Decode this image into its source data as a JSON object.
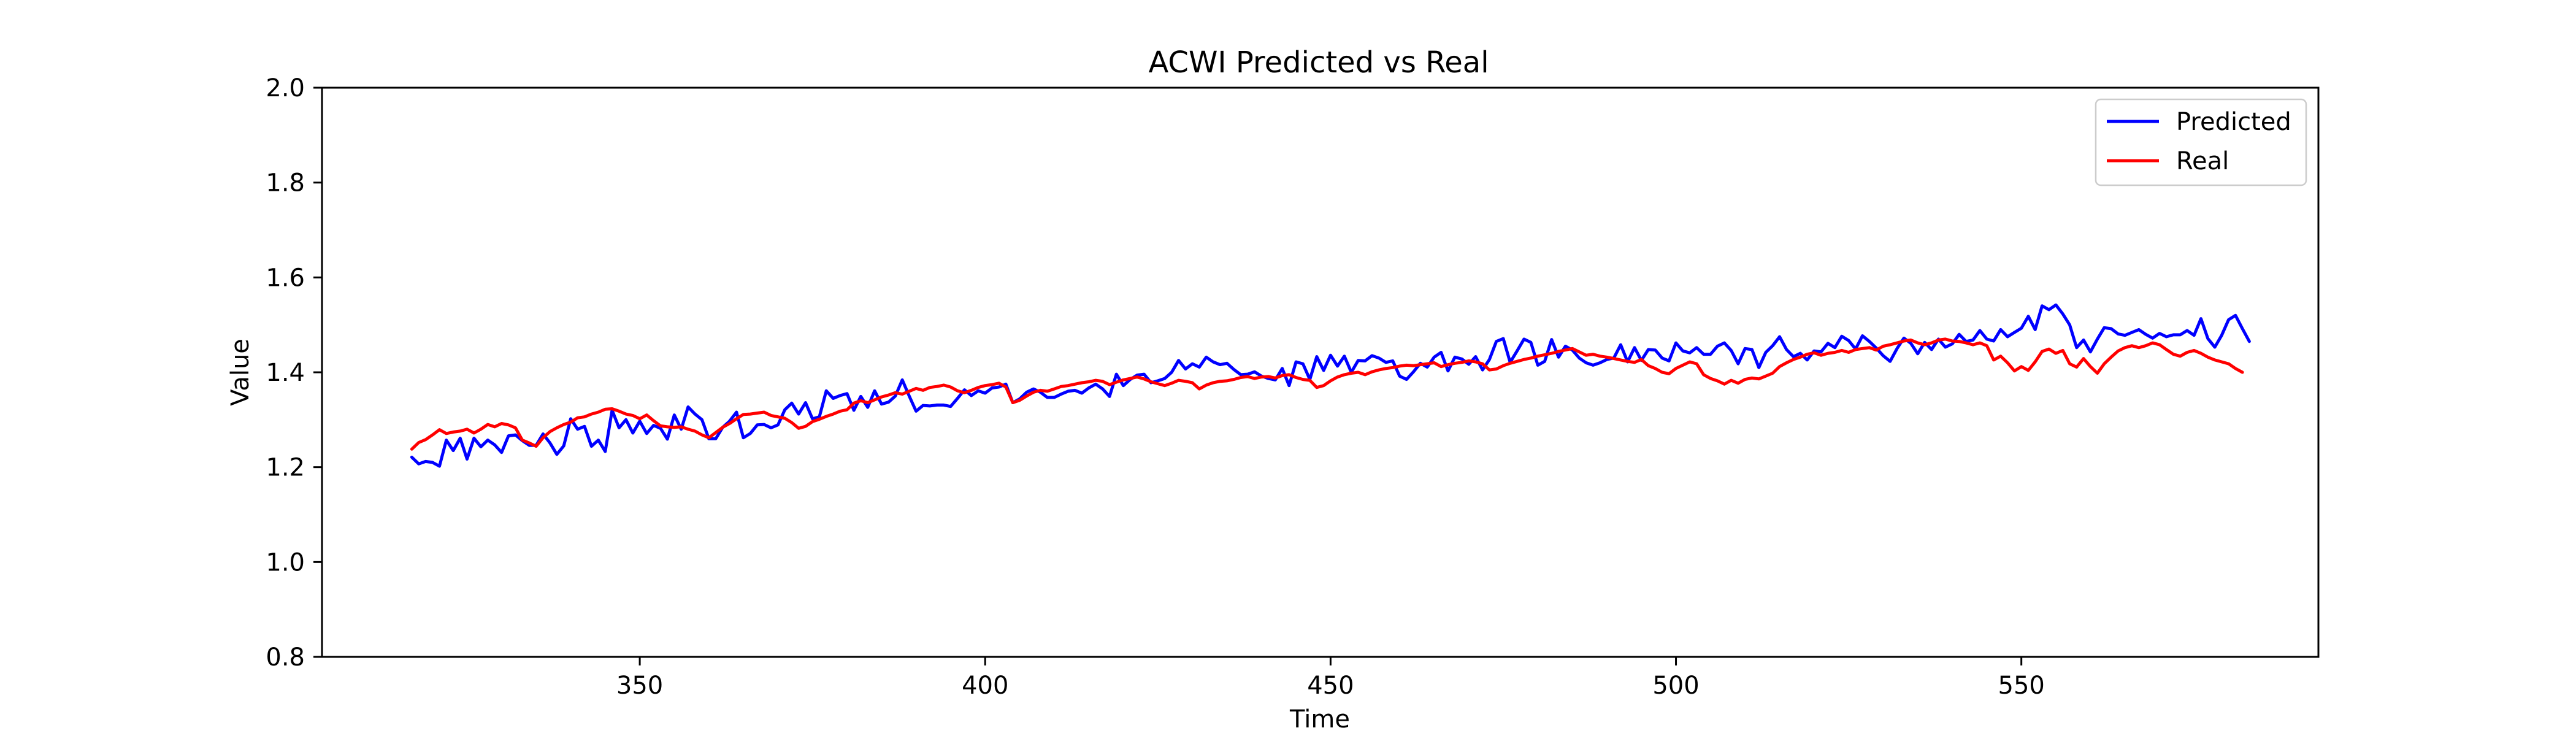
{
  "chart_data": {
    "type": "line",
    "title": "ACWI Predicted vs Real",
    "xlabel": "Time",
    "ylabel": "Value",
    "xlim": [
      304,
      593
    ],
    "ylim": [
      0.8,
      2.0
    ],
    "xticks": [
      350,
      400,
      450,
      500,
      550
    ],
    "yticks": [
      0.8,
      1.0,
      1.2,
      1.4,
      1.6,
      1.8,
      2.0
    ],
    "x_ticklabels": [
      "350",
      "400",
      "450",
      "500",
      "550"
    ],
    "y_ticklabels": [
      "0.8",
      "1.0",
      "1.2",
      "1.4",
      "1.6",
      "1.8",
      "2.0"
    ],
    "grid": false,
    "legend_position": "top-right",
    "x_start": 317,
    "x_step": 1,
    "series": [
      {
        "name": "Predicted",
        "color": "#0000ff",
        "values": [
          1.221,
          1.207,
          1.212,
          1.21,
          1.202,
          1.257,
          1.235,
          1.261,
          1.217,
          1.261,
          1.243,
          1.257,
          1.247,
          1.231,
          1.266,
          1.268,
          1.256,
          1.246,
          1.246,
          1.27,
          1.251,
          1.227,
          1.245,
          1.302,
          1.28,
          1.286,
          1.244,
          1.257,
          1.233,
          1.32,
          1.283,
          1.3,
          1.272,
          1.297,
          1.271,
          1.288,
          1.282,
          1.259,
          1.31,
          1.28,
          1.327,
          1.312,
          1.3,
          1.26,
          1.26,
          1.284,
          1.297,
          1.316,
          1.262,
          1.271,
          1.289,
          1.29,
          1.283,
          1.289,
          1.321,
          1.335,
          1.312,
          1.336,
          1.302,
          1.306,
          1.361,
          1.345,
          1.351,
          1.355,
          1.32,
          1.349,
          1.326,
          1.361,
          1.333,
          1.337,
          1.35,
          1.384,
          1.35,
          1.318,
          1.33,
          1.329,
          1.331,
          1.331,
          1.328,
          1.345,
          1.363,
          1.351,
          1.361,
          1.356,
          1.367,
          1.369,
          1.375,
          1.336,
          1.344,
          1.358,
          1.365,
          1.358,
          1.347,
          1.347,
          1.354,
          1.36,
          1.362,
          1.356,
          1.367,
          1.375,
          1.365,
          1.349,
          1.396,
          1.372,
          1.385,
          1.394,
          1.396,
          1.378,
          1.382,
          1.387,
          1.4,
          1.425,
          1.407,
          1.418,
          1.411,
          1.432,
          1.422,
          1.416,
          1.419,
          1.406,
          1.395,
          1.396,
          1.401,
          1.392,
          1.387,
          1.384,
          1.408,
          1.372,
          1.422,
          1.418,
          1.385,
          1.433,
          1.404,
          1.436,
          1.413,
          1.434,
          1.4,
          1.425,
          1.424,
          1.435,
          1.43,
          1.421,
          1.424,
          1.392,
          1.385,
          1.401,
          1.419,
          1.411,
          1.432,
          1.442,
          1.403,
          1.432,
          1.428,
          1.417,
          1.433,
          1.405,
          1.427,
          1.465,
          1.471,
          1.421,
          1.445,
          1.47,
          1.463,
          1.415,
          1.423,
          1.469,
          1.432,
          1.455,
          1.447,
          1.43,
          1.42,
          1.415,
          1.42,
          1.427,
          1.43,
          1.458,
          1.422,
          1.452,
          1.425,
          1.448,
          1.447,
          1.43,
          1.424,
          1.462,
          1.445,
          1.441,
          1.452,
          1.438,
          1.438,
          1.455,
          1.462,
          1.446,
          1.418,
          1.45,
          1.448,
          1.41,
          1.442,
          1.456,
          1.475,
          1.448,
          1.433,
          1.44,
          1.426,
          1.445,
          1.443,
          1.461,
          1.452,
          1.476,
          1.467,
          1.449,
          1.477,
          1.465,
          1.451,
          1.435,
          1.423,
          1.45,
          1.472,
          1.461,
          1.439,
          1.463,
          1.448,
          1.47,
          1.453,
          1.46,
          1.48,
          1.465,
          1.468,
          1.488,
          1.47,
          1.466,
          1.49,
          1.475,
          1.484,
          1.493,
          1.518,
          1.49,
          1.54,
          1.532,
          1.542,
          1.523,
          1.5,
          1.452,
          1.468,
          1.443,
          1.47,
          1.494,
          1.492,
          1.481,
          1.478,
          1.484,
          1.49,
          1.48,
          1.472,
          1.482,
          1.475,
          1.479,
          1.479,
          1.488,
          1.478,
          1.513,
          1.471,
          1.453,
          1.478,
          1.511,
          1.52,
          1.492,
          1.465
        ]
      },
      {
        "name": "Real",
        "color": "#ff0000",
        "values": [
          1.238,
          1.252,
          1.258,
          1.268,
          1.279,
          1.271,
          1.274,
          1.276,
          1.28,
          1.272,
          1.28,
          1.29,
          1.285,
          1.292,
          1.289,
          1.283,
          1.257,
          1.251,
          1.244,
          1.262,
          1.275,
          1.283,
          1.29,
          1.295,
          1.304,
          1.306,
          1.312,
          1.316,
          1.322,
          1.323,
          1.318,
          1.312,
          1.309,
          1.302,
          1.31,
          1.298,
          1.287,
          1.285,
          1.284,
          1.285,
          1.28,
          1.276,
          1.268,
          1.262,
          1.273,
          1.284,
          1.292,
          1.302,
          1.311,
          1.312,
          1.314,
          1.316,
          1.309,
          1.306,
          1.303,
          1.294,
          1.282,
          1.286,
          1.296,
          1.301,
          1.307,
          1.312,
          1.318,
          1.321,
          1.335,
          1.34,
          1.336,
          1.342,
          1.348,
          1.352,
          1.357,
          1.354,
          1.36,
          1.366,
          1.362,
          1.368,
          1.37,
          1.373,
          1.369,
          1.361,
          1.357,
          1.362,
          1.368,
          1.372,
          1.374,
          1.377,
          1.369,
          1.336,
          1.341,
          1.35,
          1.358,
          1.362,
          1.36,
          1.365,
          1.37,
          1.372,
          1.375,
          1.378,
          1.38,
          1.383,
          1.381,
          1.374,
          1.379,
          1.384,
          1.387,
          1.39,
          1.386,
          1.38,
          1.376,
          1.372,
          1.377,
          1.383,
          1.381,
          1.378,
          1.365,
          1.373,
          1.378,
          1.381,
          1.382,
          1.385,
          1.389,
          1.391,
          1.387,
          1.39,
          1.391,
          1.388,
          1.393,
          1.395,
          1.389,
          1.385,
          1.383,
          1.368,
          1.372,
          1.382,
          1.39,
          1.395,
          1.398,
          1.4,
          1.395,
          1.401,
          1.405,
          1.408,
          1.41,
          1.413,
          1.415,
          1.414,
          1.416,
          1.418,
          1.42,
          1.412,
          1.416,
          1.419,
          1.421,
          1.424,
          1.422,
          1.418,
          1.405,
          1.407,
          1.414,
          1.419,
          1.423,
          1.427,
          1.43,
          1.434,
          1.437,
          1.44,
          1.444,
          1.447,
          1.45,
          1.443,
          1.436,
          1.438,
          1.434,
          1.432,
          1.429,
          1.426,
          1.423,
          1.421,
          1.427,
          1.414,
          1.408,
          1.4,
          1.397,
          1.408,
          1.415,
          1.422,
          1.418,
          1.395,
          1.387,
          1.382,
          1.375,
          1.383,
          1.377,
          1.385,
          1.388,
          1.386,
          1.392,
          1.398,
          1.412,
          1.42,
          1.427,
          1.432,
          1.438,
          1.441,
          1.436,
          1.44,
          1.442,
          1.446,
          1.442,
          1.448,
          1.45,
          1.452,
          1.447,
          1.455,
          1.458,
          1.462,
          1.466,
          1.468,
          1.462,
          1.458,
          1.462,
          1.468,
          1.47,
          1.466,
          1.465,
          1.462,
          1.458,
          1.462,
          1.456,
          1.426,
          1.434,
          1.42,
          1.403,
          1.412,
          1.404,
          1.422,
          1.444,
          1.449,
          1.44,
          1.446,
          1.418,
          1.411,
          1.429,
          1.412,
          1.398,
          1.418,
          1.432,
          1.445,
          1.452,
          1.456,
          1.452,
          1.456,
          1.462,
          1.458,
          1.448,
          1.438,
          1.434,
          1.442,
          1.446,
          1.44,
          1.432,
          1.426,
          1.422,
          1.418,
          1.408,
          1.4
        ]
      }
    ]
  }
}
